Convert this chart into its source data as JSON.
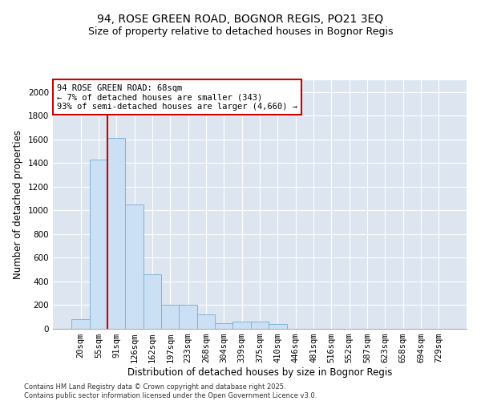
{
  "title1": "94, ROSE GREEN ROAD, BOGNOR REGIS, PO21 3EQ",
  "title2": "Size of property relative to detached houses in Bognor Regis",
  "xlabel": "Distribution of detached houses by size in Bognor Regis",
  "ylabel": "Number of detached properties",
  "categories": [
    "20sqm",
    "55sqm",
    "91sqm",
    "126sqm",
    "162sqm",
    "197sqm",
    "233sqm",
    "268sqm",
    "304sqm",
    "339sqm",
    "375sqm",
    "410sqm",
    "446sqm",
    "481sqm",
    "516sqm",
    "552sqm",
    "587sqm",
    "623sqm",
    "658sqm",
    "694sqm",
    "729sqm"
  ],
  "values": [
    80,
    1430,
    1610,
    1050,
    460,
    200,
    200,
    120,
    50,
    60,
    60,
    40,
    0,
    0,
    0,
    0,
    0,
    0,
    0,
    0,
    0
  ],
  "bar_color": "#cce0f5",
  "bar_edge_color": "#7fb3d9",
  "annotation_box_text": "94 ROSE GREEN ROAD: 68sqm\n← 7% of detached houses are smaller (343)\n93% of semi-detached houses are larger (4,660) →",
  "annotation_box_color": "#ffffff",
  "annotation_box_edge_color": "#cc0000",
  "vline_x": 1.5,
  "vline_color": "#cc0000",
  "ylim": [
    0,
    2100
  ],
  "yticks": [
    0,
    200,
    400,
    600,
    800,
    1000,
    1200,
    1400,
    1600,
    1800,
    2000
  ],
  "bg_color": "#dde6f0",
  "footer1": "Contains HM Land Registry data © Crown copyright and database right 2025.",
  "footer2": "Contains public sector information licensed under the Open Government Licence v3.0.",
  "title1_fontsize": 10,
  "title2_fontsize": 9,
  "xlabel_fontsize": 8.5,
  "ylabel_fontsize": 8.5,
  "tick_fontsize": 7.5,
  "annot_fontsize": 7.5
}
